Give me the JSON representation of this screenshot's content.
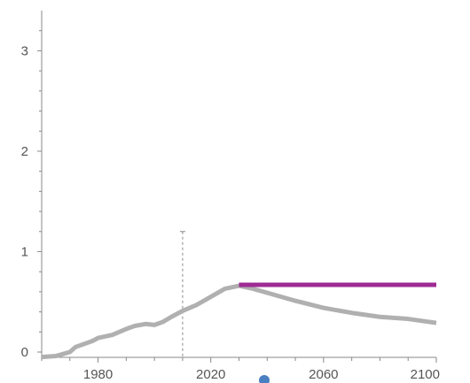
{
  "chart_data": {
    "type": "line",
    "title": "",
    "xlabel": "",
    "ylabel": "",
    "xlim": [
      1960,
      2100
    ],
    "ylim": [
      0,
      3.4
    ],
    "x_ticks": [
      1980,
      2020,
      2060,
      2100
    ],
    "y_ticks": [
      0,
      1,
      2,
      3
    ],
    "x_tick_labels": [
      "1980",
      "2020",
      "2060",
      "2100"
    ],
    "y_tick_labels": [
      "0",
      "1",
      "2",
      "3"
    ],
    "grid": false,
    "legend": "none",
    "marker_year": 2010,
    "marker_year_top": 1.2,
    "series": [
      {
        "color": "#b0b0b0",
        "x": [
          1960,
          1965,
          1970,
          1972,
          1975,
          1978,
          1980,
          1985,
          1990,
          1993,
          1997,
          2000,
          2003,
          2006,
          2010,
          2015,
          2020,
          2025,
          2030,
          2035,
          2040,
          2050,
          2060,
          2070,
          2080,
          2090,
          2100
        ],
        "y": [
          -0.05,
          -0.04,
          0.0,
          0.05,
          0.08,
          0.11,
          0.14,
          0.17,
          0.23,
          0.26,
          0.28,
          0.27,
          0.3,
          0.35,
          0.41,
          0.47,
          0.55,
          0.63,
          0.66,
          0.63,
          0.59,
          0.51,
          0.44,
          0.39,
          0.35,
          0.33,
          0.29
        ]
      },
      {
        "color": "#9e2a93",
        "x": [
          2030,
          2100
        ],
        "y": [
          0.67,
          0.67
        ]
      }
    ]
  }
}
